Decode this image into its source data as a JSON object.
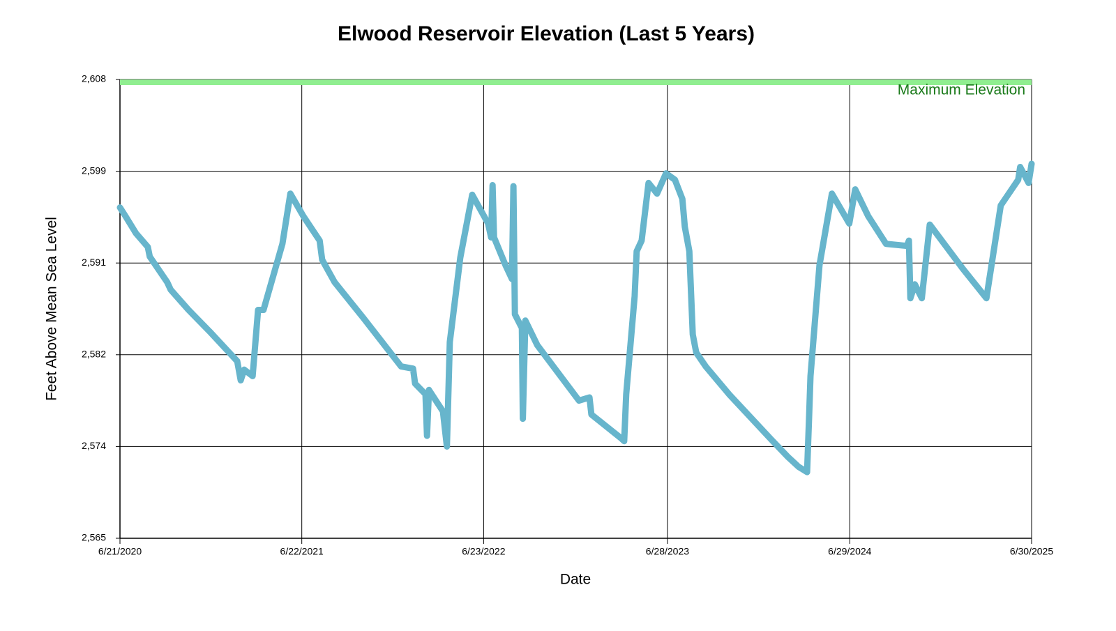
{
  "chart_data": {
    "type": "line",
    "title": "Elwood Reservoir Elevation (Last 5 Years)",
    "x_label": "Date",
    "y_label": "Feet Above Mean Sea Level",
    "x": [
      "2020-06-21",
      "2020-07-02",
      "2020-07-23",
      "2020-08-16",
      "2020-08-20",
      "2020-09-24",
      "2020-10-01",
      "2020-11-06",
      "2020-12-18",
      "2021-02-12",
      "2021-02-19",
      "2021-02-26",
      "2021-03-15",
      "2021-03-26",
      "2021-04-06",
      "2021-05-14",
      "2021-05-30",
      "2021-06-25",
      "2021-07-28",
      "2021-08-02",
      "2021-08-27",
      "2021-10-23",
      "2022-01-08",
      "2022-02-01",
      "2022-02-05",
      "2022-02-26",
      "2022-03-01",
      "2022-03-05",
      "2022-04-02",
      "2022-04-10",
      "2022-04-16",
      "2022-05-07",
      "2022-05-31",
      "2022-07-02",
      "2022-07-08",
      "2022-07-11",
      "2022-07-14",
      "2022-08-06",
      "2022-08-19",
      "2022-08-22",
      "2022-08-25",
      "2022-09-08",
      "2022-09-10",
      "2022-09-15",
      "2022-10-09",
      "2023-01-01",
      "2023-01-22",
      "2023-01-26",
      "2023-03-26",
      "2023-04-02",
      "2023-04-06",
      "2023-04-23",
      "2023-04-27",
      "2023-05-07",
      "2023-05-21",
      "2023-06-07",
      "2023-06-25",
      "2023-07-13",
      "2023-07-28",
      "2023-08-02",
      "2023-08-11",
      "2023-08-18",
      "2023-08-25",
      "2023-09-13",
      "2023-10-30",
      "2024-01-22",
      "2024-02-26",
      "2024-03-18",
      "2024-04-04",
      "2024-04-08",
      "2024-04-11",
      "2024-04-29",
      "2024-05-24",
      "2024-06-28",
      "2024-07-10",
      "2024-08-05",
      "2024-09-10",
      "2024-10-22",
      "2024-10-26",
      "2024-10-29",
      "2024-11-07",
      "2024-11-21",
      "2024-12-07",
      "2025-02-11",
      "2025-03-31",
      "2025-04-29",
      "2025-06-03",
      "2025-06-07",
      "2025-06-24",
      "2025-06-30"
    ],
    "series": [
      {
        "color": "#67b5cc",
        "values": [
          2596.0,
          2595.2,
          2593.6,
          2592.3,
          2591.4,
          2589.0,
          2588.3,
          2586.4,
          2584.4,
          2581.6,
          2579.8,
          2580.8,
          2580.2,
          2586.4,
          2586.4,
          2592.6,
          2597.3,
          2595.2,
          2592.9,
          2591.1,
          2589.0,
          2585.7,
          2581.1,
          2580.9,
          2579.5,
          2578.5,
          2574.6,
          2578.9,
          2576.9,
          2573.6,
          2583.4,
          2591.3,
          2597.2,
          2594.5,
          2593.2,
          2598.1,
          2593.2,
          2590.6,
          2589.3,
          2598.0,
          2586.0,
          2584.7,
          2576.2,
          2585.4,
          2583.1,
          2577.9,
          2578.2,
          2576.6,
          2574.4,
          2574.1,
          2578.5,
          2587.7,
          2591.9,
          2592.9,
          2598.3,
          2597.3,
          2599.2,
          2598.6,
          2596.8,
          2594.2,
          2591.9,
          2584.1,
          2582.4,
          2581.1,
          2578.5,
          2574.3,
          2572.6,
          2571.7,
          2571.2,
          2576.2,
          2580.2,
          2590.6,
          2597.3,
          2594.5,
          2597.7,
          2595.2,
          2592.6,
          2592.4,
          2592.9,
          2587.5,
          2588.8,
          2587.5,
          2594.4,
          2590.3,
          2587.5,
          2596.2,
          2598.6,
          2599.8,
          2598.3,
          2600.1
        ]
      }
    ],
    "xlim": [
      "2020-06-21",
      "2025-06-30"
    ],
    "xticks": [
      {
        "value": "2020-06-21",
        "label": "6/21/2020"
      },
      {
        "value": "2021-06-22",
        "label": "6/22/2021"
      },
      {
        "value": "2022-06-23",
        "label": "6/23/2022"
      },
      {
        "value": "2023-06-28",
        "label": "6/28/2023"
      },
      {
        "value": "2024-06-29",
        "label": "6/29/2024"
      },
      {
        "value": "2025-06-30",
        "label": "6/30/2025"
      }
    ],
    "ylim": [
      2565,
      2608
    ],
    "yticks": [
      {
        "value": 2565,
        "label": "2,565"
      },
      {
        "value": 2573.6,
        "label": "2,574"
      },
      {
        "value": 2582.2,
        "label": "2,582"
      },
      {
        "value": 2590.8,
        "label": "2,591"
      },
      {
        "value": 2599.4,
        "label": "2,599"
      },
      {
        "value": 2608,
        "label": "2,608"
      }
    ],
    "grid": true,
    "reference_line": {
      "value": 2608,
      "label": "Maximum Elevation",
      "color": "#90ee90",
      "label_color": "#1a7a1a"
    }
  }
}
